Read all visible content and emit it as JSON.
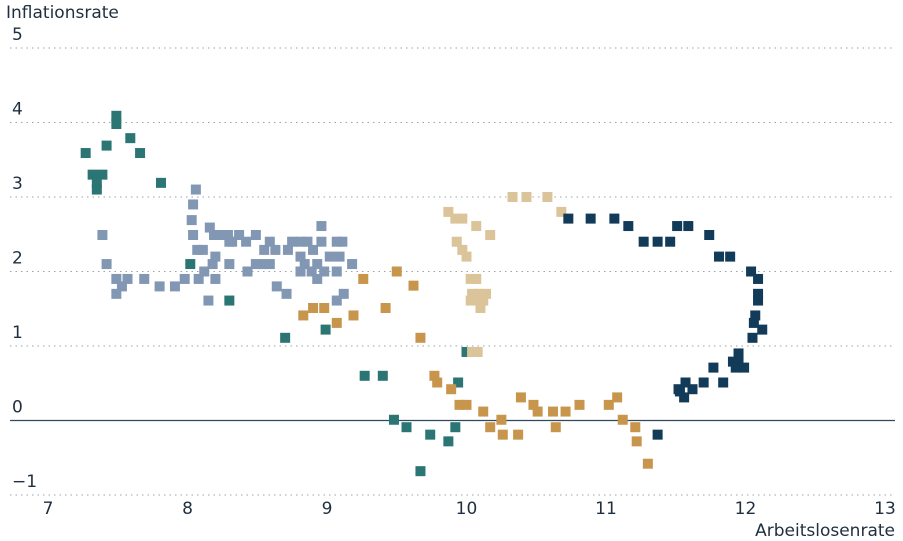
{
  "chart_data": {
    "type": "scatter",
    "x_label": "Arbeitslosenrate",
    "y_label": "Inflationsrate",
    "xlim": [
      7,
      13
    ],
    "xticks": [
      7,
      8,
      9,
      10,
      11,
      12,
      13
    ],
    "ylim": [
      -1,
      5
    ],
    "yticks": [
      {
        "value": -1,
        "label": "−1"
      },
      0,
      1,
      2,
      3,
      4,
      5
    ],
    "grid": true,
    "series": [
      {
        "color": "#2b7575",
        "x": [
          7.49,
          7.49,
          7.59,
          7.42,
          7.27,
          7.66,
          7.32,
          7.39,
          7.35,
          7.35,
          7.81,
          8.02,
          8.3,
          8.7,
          8.99,
          9.27,
          9.4,
          9.48,
          9.57,
          9.74,
          9.87,
          9.92,
          9.94,
          10.0,
          9.67
        ],
        "values": [
          4.09,
          3.98,
          3.79,
          3.69,
          3.59,
          3.59,
          3.3,
          3.3,
          3.19,
          3.1,
          3.19,
          2.1,
          1.61,
          1.11,
          1.22,
          0.6,
          0.6,
          0.01,
          -0.09,
          -0.19,
          -0.28,
          -0.09,
          0.51,
          0.92,
          -0.68
        ]
      },
      {
        "color": "#8297b3",
        "x": [
          7.39,
          7.42,
          7.49,
          7.57,
          7.69,
          7.53,
          7.49,
          7.8,
          7.91,
          7.98,
          8.06,
          8.04,
          8.03,
          8.04,
          8.07,
          8.11,
          8.16,
          8.19,
          8.24,
          8.29,
          8.32,
          8.37,
          8.42,
          8.49,
          8.55,
          8.59,
          8.63,
          8.72,
          8.75,
          8.81,
          8.86,
          8.96,
          8.96,
          9.07,
          9.11,
          8.9,
          9.02,
          9.09,
          9.18,
          8.84,
          8.93,
          8.81,
          8.89,
          8.98,
          9.07,
          8.53,
          8.59,
          8.18,
          8.3,
          8.12,
          8.08,
          8.2,
          8.43,
          8.49,
          8.15,
          8.64,
          8.71,
          8.93,
          9.12,
          9.07,
          8.81,
          8.3,
          8.2
        ],
        "values": [
          2.49,
          2.1,
          1.9,
          1.9,
          1.9,
          1.8,
          1.7,
          1.8,
          1.8,
          1.9,
          3.1,
          2.9,
          2.69,
          2.49,
          2.29,
          2.29,
          2.59,
          2.49,
          2.49,
          2.49,
          2.4,
          2.49,
          2.4,
          2.49,
          2.29,
          2.4,
          2.29,
          2.29,
          2.4,
          2.4,
          2.4,
          2.61,
          2.4,
          2.4,
          2.4,
          2.29,
          2.2,
          2.2,
          2.1,
          2.1,
          2.1,
          2.0,
          2.0,
          2.0,
          2.0,
          2.1,
          2.1,
          2.1,
          2.1,
          2.0,
          1.9,
          1.9,
          2.0,
          2.1,
          1.61,
          1.8,
          1.7,
          1.9,
          1.7,
          1.61,
          2.2,
          2.4,
          2.2
        ]
      },
      {
        "color": "#c8954d",
        "x": [
          8.83,
          8.9,
          8.98,
          9.07,
          9.19,
          9.26,
          9.42,
          9.5,
          9.62,
          9.67,
          9.77,
          9.79,
          9.89,
          9.95,
          10.0,
          10.12,
          10.17,
          10.26,
          10.37,
          10.25,
          10.39,
          10.48,
          10.51,
          10.62,
          10.64,
          10.71,
          10.81,
          11.02,
          11.08,
          11.12,
          11.21,
          11.22,
          11.3
        ],
        "values": [
          1.41,
          1.51,
          1.51,
          1.31,
          1.41,
          1.9,
          1.51,
          2.0,
          1.81,
          1.11,
          0.6,
          0.51,
          0.42,
          0.21,
          0.21,
          0.12,
          -0.09,
          -0.19,
          -0.19,
          0.01,
          0.31,
          0.21,
          0.12,
          0.12,
          -0.09,
          0.12,
          0.21,
          0.21,
          0.31,
          0.01,
          -0.09,
          -0.28,
          -0.58
        ]
      },
      {
        "color": "#dcc49a",
        "x": [
          9.87,
          9.92,
          9.97,
          10.07,
          10.17,
          9.93,
          9.97,
          10.0,
          10.03,
          10.07,
          10.04,
          10.09,
          10.14,
          10.03,
          10.07,
          10.12,
          10.1,
          10.04,
          10.08,
          10.33,
          10.43,
          10.58,
          10.68
        ],
        "values": [
          2.8,
          2.71,
          2.71,
          2.61,
          2.49,
          2.4,
          2.29,
          2.2,
          1.9,
          1.9,
          1.7,
          1.7,
          1.7,
          1.61,
          1.61,
          1.61,
          1.51,
          0.92,
          0.92,
          3.0,
          3.0,
          3.0,
          2.8
        ]
      },
      {
        "color": "#123a59",
        "x": [
          10.73,
          10.89,
          11.06,
          11.16,
          11.27,
          11.37,
          11.46,
          11.51,
          11.59,
          11.74,
          11.81,
          11.89,
          12.04,
          12.09,
          12.09,
          12.09,
          12.07,
          12.12,
          12.06,
          12.05,
          11.95,
          11.95,
          11.91,
          11.99,
          11.93,
          11.77,
          11.84,
          11.7,
          11.57,
          11.62,
          11.52,
          11.56,
          11.53,
          11.37
        ],
        "values": [
          2.71,
          2.71,
          2.71,
          2.61,
          2.4,
          2.4,
          2.4,
          2.61,
          2.61,
          2.49,
          2.2,
          2.2,
          2.0,
          1.9,
          1.7,
          1.61,
          1.41,
          1.22,
          1.31,
          1.11,
          0.9,
          0.79,
          0.79,
          0.71,
          0.71,
          0.71,
          0.51,
          0.51,
          0.51,
          0.42,
          0.42,
          0.31,
          0.39,
          -0.19
        ]
      }
    ]
  }
}
